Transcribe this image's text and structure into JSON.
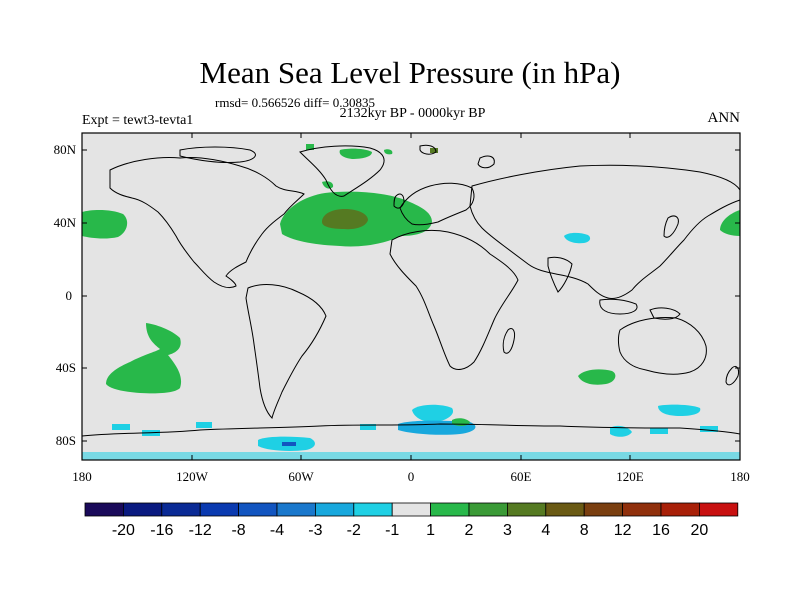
{
  "title": "Mean Sea Level Pressure (in hPa)",
  "stats_line": "rmsd= 0.566526 diff= 0.30835",
  "period_line": "2132kyr BP - 0000kyr BP",
  "experiment_label": "Expt = tewt3-tevta1",
  "season_label": "ANN",
  "axes": {
    "y_ticks": [
      {
        "label": "80N",
        "lat": 80
      },
      {
        "label": "40N",
        "lat": 40
      },
      {
        "label": "0",
        "lat": 0
      },
      {
        "label": "40S",
        "lat": -40
      },
      {
        "label": "80S",
        "lat": -80
      }
    ],
    "x_ticks": [
      {
        "label": "180",
        "lon": -180
      },
      {
        "label": "120W",
        "lon": -120
      },
      {
        "label": "60W",
        "lon": -60
      },
      {
        "label": "0",
        "lon": 0
      },
      {
        "label": "60E",
        "lon": 60
      },
      {
        "label": "120E",
        "lon": 120
      },
      {
        "label": "180",
        "lon": 180
      }
    ],
    "lon_range": [
      -180,
      180
    ],
    "lat_range": [
      -90,
      90
    ]
  },
  "colorbar": {
    "labels": [
      "-20",
      "-16",
      "-12",
      "-8",
      "-4",
      "-3",
      "-2",
      "-1",
      "1",
      "2",
      "3",
      "4",
      "8",
      "12",
      "16",
      "20"
    ],
    "colors": [
      "#1a0a5a",
      "#0a1a80",
      "#0a2a95",
      "#0a3ab0",
      "#1255c0",
      "#1a78cc",
      "#18a8dd",
      "#1fd0e4",
      "#e4e4e4",
      "#28b84a",
      "#3a9a36",
      "#557a22",
      "#6a5a14",
      "#7a3f10",
      "#90300c",
      "#a82008",
      "#c81010"
    ]
  },
  "colors": {
    "background": "#e4e4e4",
    "positive_1_2": "#28b84a",
    "positive_3_4": "#557a22",
    "negative_1_2": "#1fd0e4",
    "negative_2_3": "#18a8dd"
  },
  "anomaly_regions": [
    {
      "name": "north-atlantic",
      "sign": "+",
      "level": "1-2"
    },
    {
      "name": "north-atlantic-core",
      "sign": "+",
      "level": "3-4"
    },
    {
      "name": "north-pacific",
      "sign": "+",
      "level": "1-2"
    },
    {
      "name": "south-pacific",
      "sign": "+",
      "level": "1-2"
    },
    {
      "name": "south-indian-ocean",
      "sign": "+",
      "level": "1-2"
    },
    {
      "name": "central-asia",
      "sign": "-",
      "level": "1-2"
    },
    {
      "name": "antarctica",
      "sign": "-",
      "level": "1-2"
    }
  ]
}
